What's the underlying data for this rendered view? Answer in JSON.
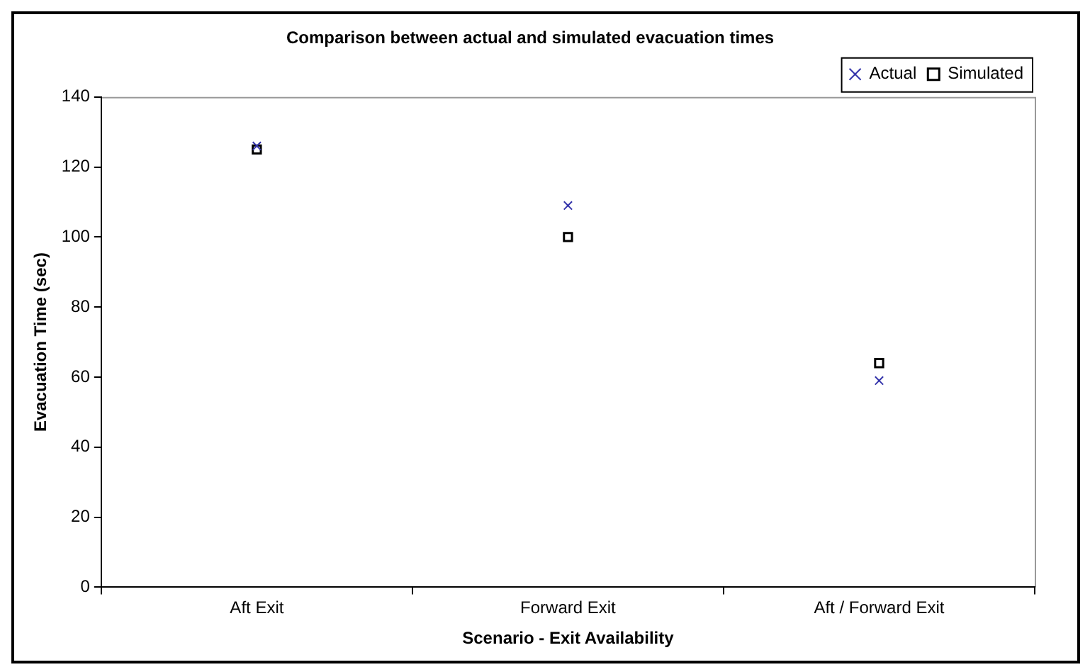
{
  "chart_data": {
    "type": "scatter",
    "title": "Comparison between actual and simulated evacuation times",
    "xlabel": "Scenario - Exit Availability",
    "ylabel": "Evacuation Time (sec)",
    "categories": [
      "Aft Exit",
      "Forward Exit",
      "Aft / Forward Exit"
    ],
    "series": [
      {
        "name": "Actual",
        "color": "#3333aa",
        "marker": "cross",
        "values": [
          126,
          109,
          59
        ]
      },
      {
        "name": "Simulated",
        "color": "#000000",
        "marker": "square",
        "values": [
          125,
          100,
          64
        ]
      }
    ],
    "ylim": [
      0,
      140
    ],
    "yticks": [
      0,
      20,
      40,
      60,
      80,
      100,
      120,
      140
    ],
    "grid": false,
    "legend": "top right"
  }
}
